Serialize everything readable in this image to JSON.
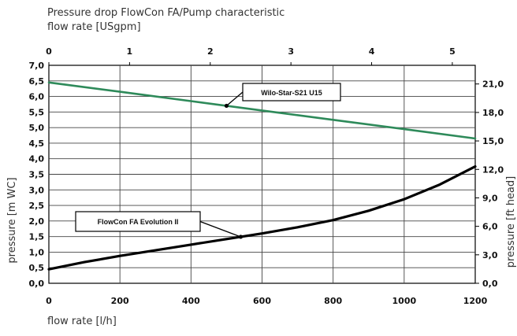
{
  "chart_data": {
    "type": "line",
    "title": "Pressure drop FlowCon FA/Pump characteristic",
    "top_axis_label": "flow rate [USgpm]",
    "xlabel": "flow rate [l/h]",
    "ylabel": "pressure [m WC]",
    "y2label": "pressure [ft head]",
    "xlim": [
      0,
      1200
    ],
    "ylim": [
      0,
      7
    ],
    "x_ticks": [
      "0",
      "200",
      "400",
      "600",
      "800",
      "1000",
      "1200"
    ],
    "x_tick_values": [
      0,
      200,
      400,
      600,
      800,
      1000,
      1200
    ],
    "y_ticks": [
      "0,0",
      "0,5",
      "1,0",
      "1,5",
      "2,0",
      "2,5",
      "3,0",
      "3,5",
      "4,0",
      "4,5",
      "5,0",
      "5,5",
      "6,0",
      "6,5",
      "7,0"
    ],
    "y_tick_values": [
      0,
      0.5,
      1,
      1.5,
      2,
      2.5,
      3,
      3.5,
      4,
      4.5,
      5,
      5.5,
      6,
      6.5,
      7
    ],
    "top_ticks": [
      "0",
      "1",
      "2",
      "3",
      "4",
      "5"
    ],
    "top_tick_values": [
      0,
      1,
      2,
      3,
      4,
      5
    ],
    "right_ticks": [
      "0,0",
      "3,0",
      "6,0",
      "9,0",
      "12,0",
      "15,0",
      "18,0",
      "21,0"
    ],
    "right_tick_values": [
      0,
      3,
      6,
      9,
      12,
      15,
      18,
      21
    ],
    "lpm_per_usgpm": 227.1,
    "m_per_ft": 0.3048,
    "grid": true,
    "series": [
      {
        "name": "Wilo-Star-S21 U15",
        "color": "#2e8a5a",
        "x": [
          0,
          200,
          400,
          600,
          800,
          1000,
          1200
        ],
        "y": [
          6.45,
          6.15,
          5.85,
          5.55,
          5.25,
          4.95,
          4.65
        ],
        "label_anchor_x": 500
      },
      {
        "name": "FlowCon FA Evolution II",
        "color": "#000000",
        "x": [
          0,
          100,
          200,
          300,
          400,
          500,
          600,
          700,
          800,
          900,
          1000,
          1100,
          1200
        ],
        "y": [
          0.45,
          0.68,
          0.88,
          1.06,
          1.24,
          1.42,
          1.6,
          1.8,
          2.03,
          2.33,
          2.7,
          3.17,
          3.75
        ],
        "label_anchor_x": 540
      }
    ]
  }
}
